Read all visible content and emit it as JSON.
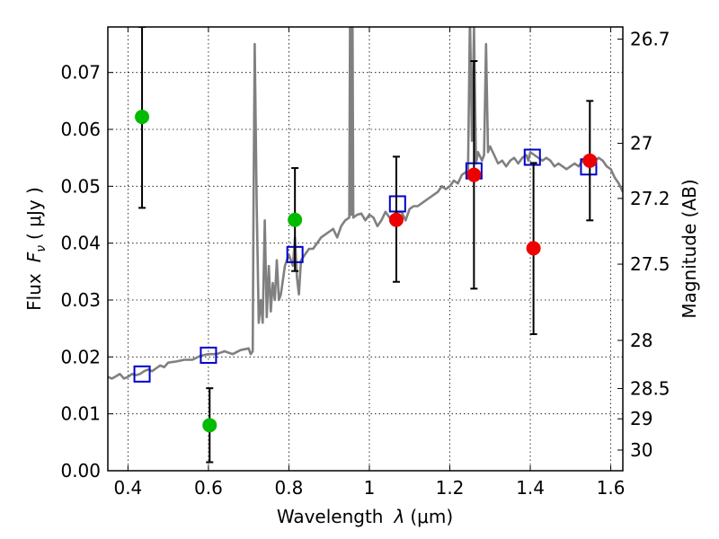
{
  "chart_data": {
    "type": "scatter",
    "xlabel": "Wavelength",
    "xlabel_symbol": "λ",
    "xlabel_unit": "(μm)",
    "ylabel_text": "Flux",
    "ylabel_symbol": "F",
    "ylabel_subscript": "ν",
    "ylabel_unit": "( μJy )",
    "y2label": "Magnitude (AB)",
    "xlim": [
      0.35,
      1.63
    ],
    "ylim": [
      0.0,
      0.078
    ],
    "grid": true,
    "x_ticks": [
      0.4,
      0.6,
      0.8,
      1.0,
      1.2,
      1.4,
      1.6
    ],
    "x_tick_labels": [
      "0.4",
      "0.6",
      "0.8",
      "1",
      "1.2",
      "1.4",
      "1.6"
    ],
    "y_ticks": [
      0.0,
      0.01,
      0.02,
      0.03,
      0.04,
      0.05,
      0.06,
      0.07
    ],
    "y_tick_labels": [
      "0.00",
      "0.01",
      "0.02",
      "0.03",
      "0.04",
      "0.05",
      "0.06",
      "0.07"
    ],
    "y2_ticks": [
      26.7,
      27,
      27.2,
      27.5,
      28,
      28.5,
      29,
      30
    ],
    "y2_tick_labels": [
      "26.7",
      "27",
      "27.2",
      "27.5",
      "28",
      "28.5",
      "29",
      "30"
    ],
    "colors": {
      "sed": "#808080",
      "model_box": "#0000cc",
      "green_point": "#00bb00",
      "red_point": "#ee0000",
      "errorbar": "#000000"
    },
    "series": [
      {
        "name": "",
        "kind": "line",
        "points": [
          [
            0.35,
            0.0165
          ],
          [
            0.36,
            0.0162
          ],
          [
            0.37,
            0.0166
          ],
          [
            0.38,
            0.017
          ],
          [
            0.39,
            0.0162
          ],
          [
            0.4,
            0.0165
          ],
          [
            0.41,
            0.017
          ],
          [
            0.42,
            0.0168
          ],
          [
            0.43,
            0.017
          ],
          [
            0.44,
            0.0175
          ],
          [
            0.45,
            0.0178
          ],
          [
            0.46,
            0.0175
          ],
          [
            0.47,
            0.018
          ],
          [
            0.48,
            0.0185
          ],
          [
            0.49,
            0.0182
          ],
          [
            0.5,
            0.019
          ],
          [
            0.52,
            0.0192
          ],
          [
            0.54,
            0.0195
          ],
          [
            0.56,
            0.0195
          ],
          [
            0.58,
            0.0202
          ],
          [
            0.6,
            0.0205
          ],
          [
            0.62,
            0.0205
          ],
          [
            0.64,
            0.021
          ],
          [
            0.66,
            0.0205
          ],
          [
            0.68,
            0.0212
          ],
          [
            0.7,
            0.0215
          ],
          [
            0.705,
            0.0205
          ],
          [
            0.71,
            0.021
          ],
          [
            0.712,
            0.047
          ],
          [
            0.715,
            0.075
          ],
          [
            0.72,
            0.047
          ],
          [
            0.725,
            0.026
          ],
          [
            0.73,
            0.03
          ],
          [
            0.735,
            0.026
          ],
          [
            0.74,
            0.044
          ],
          [
            0.745,
            0.027
          ],
          [
            0.75,
            0.036
          ],
          [
            0.755,
            0.028
          ],
          [
            0.76,
            0.033
          ],
          [
            0.765,
            0.03
          ],
          [
            0.77,
            0.037
          ],
          [
            0.775,
            0.03
          ],
          [
            0.78,
            0.031
          ],
          [
            0.79,
            0.036
          ],
          [
            0.8,
            0.038
          ],
          [
            0.81,
            0.036
          ],
          [
            0.815,
            0.041
          ],
          [
            0.82,
            0.034
          ],
          [
            0.825,
            0.031
          ],
          [
            0.83,
            0.037
          ],
          [
            0.84,
            0.038
          ],
          [
            0.85,
            0.039
          ],
          [
            0.86,
            0.039
          ],
          [
            0.87,
            0.04
          ],
          [
            0.88,
            0.041
          ],
          [
            0.89,
            0.0415
          ],
          [
            0.9,
            0.042
          ],
          [
            0.91,
            0.0425
          ],
          [
            0.92,
            0.041
          ],
          [
            0.93,
            0.043
          ],
          [
            0.94,
            0.044
          ],
          [
            0.95,
            0.0445
          ],
          [
            0.952,
            0.08
          ],
          [
            0.955,
            0.045
          ],
          [
            0.958,
            0.08
          ],
          [
            0.96,
            0.0445
          ],
          [
            0.97,
            0.045
          ],
          [
            0.98,
            0.0452
          ],
          [
            0.99,
            0.044
          ],
          [
            1.0,
            0.045
          ],
          [
            1.01,
            0.0445
          ],
          [
            1.02,
            0.043
          ],
          [
            1.03,
            0.044
          ],
          [
            1.04,
            0.0455
          ],
          [
            1.05,
            0.0445
          ],
          [
            1.06,
            0.045
          ],
          [
            1.07,
            0.0455
          ],
          [
            1.08,
            0.0455
          ],
          [
            1.09,
            0.044
          ],
          [
            1.1,
            0.046
          ],
          [
            1.11,
            0.0465
          ],
          [
            1.12,
            0.0465
          ],
          [
            1.13,
            0.047
          ],
          [
            1.14,
            0.0475
          ],
          [
            1.15,
            0.048
          ],
          [
            1.16,
            0.0485
          ],
          [
            1.17,
            0.049
          ],
          [
            1.18,
            0.05
          ],
          [
            1.19,
            0.0495
          ],
          [
            1.2,
            0.05
          ],
          [
            1.21,
            0.051
          ],
          [
            1.22,
            0.0505
          ],
          [
            1.23,
            0.052
          ],
          [
            1.24,
            0.0525
          ],
          [
            1.245,
            0.052
          ],
          [
            1.25,
            0.08
          ],
          [
            1.255,
            0.058
          ],
          [
            1.26,
            0.078
          ],
          [
            1.265,
            0.054
          ],
          [
            1.27,
            0.056
          ],
          [
            1.28,
            0.0545
          ],
          [
            1.285,
            0.0555
          ],
          [
            1.29,
            0.075
          ],
          [
            1.295,
            0.056
          ],
          [
            1.3,
            0.057
          ],
          [
            1.31,
            0.0555
          ],
          [
            1.32,
            0.054
          ],
          [
            1.33,
            0.0545
          ],
          [
            1.34,
            0.0535
          ],
          [
            1.35,
            0.0545
          ],
          [
            1.36,
            0.055
          ],
          [
            1.37,
            0.054
          ],
          [
            1.38,
            0.055
          ],
          [
            1.39,
            0.0555
          ],
          [
            1.395,
            0.0545
          ],
          [
            1.4,
            0.056
          ],
          [
            1.41,
            0.0555
          ],
          [
            1.42,
            0.055
          ],
          [
            1.43,
            0.0545
          ],
          [
            1.44,
            0.055
          ],
          [
            1.45,
            0.0545
          ],
          [
            1.46,
            0.0535
          ],
          [
            1.47,
            0.054
          ],
          [
            1.48,
            0.0535
          ],
          [
            1.49,
            0.053
          ],
          [
            1.5,
            0.0535
          ],
          [
            1.51,
            0.054
          ],
          [
            1.52,
            0.0535
          ],
          [
            1.53,
            0.0545
          ],
          [
            1.54,
            0.0545
          ],
          [
            1.55,
            0.0545
          ],
          [
            1.56,
            0.0545
          ],
          [
            1.57,
            0.055
          ],
          [
            1.58,
            0.0545
          ],
          [
            1.59,
            0.0535
          ],
          [
            1.6,
            0.053
          ],
          [
            1.61,
            0.0515
          ],
          [
            1.62,
            0.0505
          ],
          [
            1.63,
            0.049
          ]
        ]
      },
      {
        "name": "",
        "kind": "box",
        "points": [
          [
            0.435,
            0.017
          ],
          [
            0.6,
            0.0203
          ],
          [
            0.815,
            0.038
          ],
          [
            1.07,
            0.0469
          ],
          [
            1.26,
            0.0527
          ],
          [
            1.405,
            0.0551
          ],
          [
            1.545,
            0.0534
          ]
        ]
      },
      {
        "name": "",
        "kind": "errorpoint",
        "color": "green",
        "points": [
          {
            "x": 0.435,
            "y": 0.0622,
            "ylow": 0.0462,
            "yhigh": 0.078
          },
          {
            "x": 0.603,
            "y": 0.008,
            "ylow": 0.0015,
            "yhigh": 0.0145
          },
          {
            "x": 0.815,
            "y": 0.0441,
            "ylow": 0.0351,
            "yhigh": 0.0532
          }
        ]
      },
      {
        "name": "",
        "kind": "errorpoint",
        "color": "red",
        "points": [
          {
            "x": 1.067,
            "y": 0.0441,
            "ylow": 0.0332,
            "yhigh": 0.0552
          },
          {
            "x": 1.26,
            "y": 0.052,
            "ylow": 0.032,
            "yhigh": 0.072
          },
          {
            "x": 1.408,
            "y": 0.0391,
            "ylow": 0.024,
            "yhigh": 0.0541
          },
          {
            "x": 1.548,
            "y": 0.0545,
            "ylow": 0.044,
            "yhigh": 0.065
          }
        ]
      }
    ]
  }
}
